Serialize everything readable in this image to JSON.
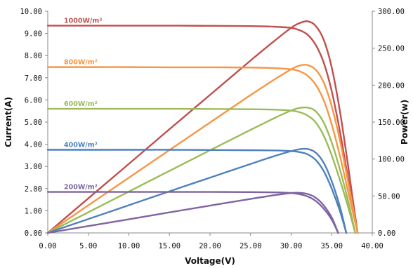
{
  "chart_data": {
    "type": "line",
    "title": "",
    "xlabel": "Voltage(V)",
    "ylabel_left": "Current(A)",
    "ylabel_right": "Power(w)",
    "xlim": [
      0,
      40
    ],
    "ylim_left": [
      0,
      10
    ],
    "ylim_right": [
      0,
      300
    ],
    "grid": false,
    "x_ticks": [
      "0.00",
      "5.00",
      "10.00",
      "15.00",
      "20.00",
      "25.00",
      "30.00",
      "35.00",
      "40.00"
    ],
    "y_left_ticks": [
      "0.00",
      "1.00",
      "2.00",
      "3.00",
      "4.00",
      "5.00",
      "6.00",
      "7.00",
      "8.00",
      "9.00",
      "10.00"
    ],
    "y_right_ticks": [
      "0.00",
      "50.00",
      "100.00",
      "150.00",
      "200.00",
      "250.00",
      "300.00"
    ],
    "irradiance_labels": [
      {
        "text": "1000W/m²",
        "color": "#c0504d"
      },
      {
        "text": "800W/m²",
        "color": "#f79646"
      },
      {
        "text": "600W/m²",
        "color": "#9bbb59"
      },
      {
        "text": "400W/m²",
        "color": "#4f81bd"
      },
      {
        "text": "200W/m²",
        "color": "#8064a2"
      }
    ],
    "series": [
      {
        "label": "1000W/m²",
        "color": "#c0504d",
        "axis": "left",
        "x": [
          0,
          5,
          10,
          15,
          20,
          25,
          28,
          30,
          31,
          32,
          33,
          34,
          35,
          36,
          37,
          37.6,
          38.2
        ],
        "y": [
          9.35,
          9.35,
          9.35,
          9.35,
          9.34,
          9.33,
          9.3,
          9.25,
          9.15,
          8.95,
          8.5,
          7.7,
          6.4,
          4.6,
          2.5,
          1.2,
          0
        ]
      },
      {
        "label": "1000W/m²",
        "color": "#c0504d",
        "axis": "right",
        "x": [
          0,
          5,
          10,
          15,
          20,
          25,
          28,
          30,
          31,
          32,
          33,
          34,
          35,
          36,
          37,
          37.6,
          38.2
        ],
        "y": [
          0,
          46.8,
          93.5,
          140.3,
          186.8,
          233.3,
          260.4,
          277.5,
          283.7,
          286.4,
          280.5,
          261.8,
          224,
          165.6,
          92.5,
          45.1,
          0
        ]
      },
      {
        "label": "800W/m²",
        "color": "#f79646",
        "axis": "left",
        "x": [
          0,
          5,
          10,
          15,
          20,
          25,
          28,
          30,
          31,
          32,
          33,
          34,
          35,
          36,
          37,
          38.2
        ],
        "y": [
          7.48,
          7.48,
          7.48,
          7.47,
          7.47,
          7.46,
          7.43,
          7.38,
          7.3,
          7.1,
          6.7,
          6.0,
          4.9,
          3.5,
          1.9,
          0
        ]
      },
      {
        "label": "800W/m²",
        "color": "#f79646",
        "axis": "right",
        "x": [
          0,
          5,
          10,
          15,
          20,
          25,
          28,
          30,
          31,
          32,
          33,
          34,
          35,
          36,
          37,
          38.2
        ],
        "y": [
          0,
          37.4,
          74.8,
          112.1,
          149.4,
          186.5,
          208,
          221.4,
          226.3,
          227.2,
          221.1,
          204,
          171.5,
          126,
          70.3,
          0
        ]
      },
      {
        "label": "600W/m²",
        "color": "#9bbb59",
        "axis": "left",
        "x": [
          0,
          5,
          10,
          15,
          20,
          25,
          28,
          30,
          31,
          32,
          33,
          34,
          35,
          36,
          37,
          37.9
        ],
        "y": [
          5.6,
          5.6,
          5.6,
          5.6,
          5.59,
          5.58,
          5.56,
          5.52,
          5.45,
          5.3,
          5.0,
          4.4,
          3.5,
          2.4,
          1.2,
          0
        ]
      },
      {
        "label": "600W/m²",
        "color": "#9bbb59",
        "axis": "right",
        "x": [
          0,
          5,
          10,
          15,
          20,
          25,
          28,
          30,
          31,
          32,
          33,
          34,
          35,
          36,
          37,
          37.9
        ],
        "y": [
          0,
          28,
          56,
          84,
          111.8,
          139.5,
          155.7,
          165.6,
          169,
          169.6,
          165,
          149.6,
          122.5,
          86.4,
          44.4,
          0
        ]
      },
      {
        "label": "400W/m²",
        "color": "#4f81bd",
        "axis": "left",
        "x": [
          0,
          5,
          10,
          15,
          20,
          25,
          28,
          30,
          31,
          32,
          33,
          34,
          35,
          36,
          36.8
        ],
        "y": [
          3.75,
          3.75,
          3.75,
          3.75,
          3.74,
          3.73,
          3.72,
          3.69,
          3.65,
          3.55,
          3.3,
          2.8,
          2.0,
          1.0,
          0
        ]
      },
      {
        "label": "400W/m²",
        "color": "#4f81bd",
        "axis": "right",
        "x": [
          0,
          5,
          10,
          15,
          20,
          25,
          28,
          30,
          31,
          32,
          33,
          34,
          35,
          36,
          36.8
        ],
        "y": [
          0,
          18.8,
          37.5,
          56.3,
          74.8,
          93.3,
          104.2,
          110.7,
          113.2,
          113.6,
          108.9,
          95.2,
          70,
          36,
          0
        ]
      },
      {
        "label": "200W/m²",
        "color": "#8064a2",
        "axis": "left",
        "x": [
          0,
          5,
          10,
          15,
          20,
          25,
          28,
          30,
          31,
          32,
          33,
          34,
          35,
          35.8
        ],
        "y": [
          1.85,
          1.85,
          1.85,
          1.85,
          1.85,
          1.84,
          1.83,
          1.8,
          1.75,
          1.65,
          1.45,
          1.1,
          0.6,
          0
        ]
      },
      {
        "label": "200W/m²",
        "color": "#8064a2",
        "axis": "right",
        "x": [
          0,
          5,
          10,
          15,
          20,
          25,
          28,
          30,
          31,
          32,
          33,
          34,
          35,
          35.8
        ],
        "y": [
          0,
          9.3,
          18.5,
          27.8,
          37,
          46,
          51.2,
          54,
          54.3,
          52.8,
          47.9,
          37.4,
          21,
          0
        ]
      }
    ]
  }
}
